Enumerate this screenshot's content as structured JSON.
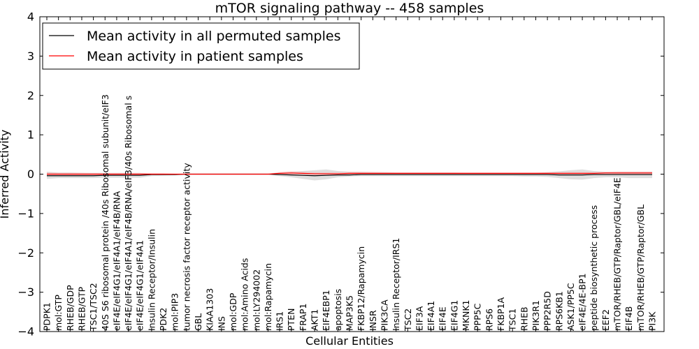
{
  "chart_data": {
    "type": "line",
    "title": "mTOR signaling pathway -- 458 samples",
    "xlabel": "Cellular Entities",
    "ylabel": "Inferred Activity",
    "ylim": [
      -4,
      4
    ],
    "yticks": [
      -4,
      -3,
      -2,
      -1,
      0,
      1,
      2,
      3,
      4
    ],
    "ytick_labels": [
      "−4",
      "−3",
      "−2",
      "−1",
      "0",
      "1",
      "2",
      "3",
      "4"
    ],
    "grid": false,
    "legend_position": "top-left",
    "categories": [
      "PDPK1",
      "mol:GTP",
      "RHEB/GDP",
      "RHEB/GTP",
      "TSC1/TSC2",
      "40S S6 ribosomal protein /40s Ribosomal subunit/eIF3",
      "eIF4E/eIF4G1/eIF4A1/eIF4B/RNA",
      "eIF4E/eIF4G1/eIF4A1/eIF4B/RNA/eIF3/40s Ribosomal s",
      "eIF4E/eIF4G1/eIF4A1",
      "Insulin Receptor/Insulin",
      "PDK2",
      "mol:PIP3",
      "tumor necrosis factor receptor activity",
      "GBL",
      "KIAA1303",
      "INS",
      "mol:GDP",
      "mol:Amino Acids",
      "mol:LY294002",
      "mol:Rapamycin",
      "IRS1",
      "PTEN",
      "FRAP1",
      "AKT1",
      "EIF4EBP1",
      "apoptosis",
      "MAP3K5",
      "FKBP12/Rapamycin",
      "INSR",
      "PIK3CA",
      "Insulin Receptor/IRS1",
      "TSC2",
      "EIF3A",
      "EIF4A1",
      "EIF4E",
      "EIF4G1",
      "MKNK1",
      "PPP5C",
      "RPS6",
      "FKBP1A",
      "TSC1",
      "RHEB",
      "PIK3R1",
      "PPP2R5D",
      "RPS6KB1",
      "ASK1/PP5C",
      "eIF4E/4E-BP1",
      "peptide biosynthetic process",
      "EEF2",
      "mTOR/RHEB/GTP/Raptor/GBL/eIF4E",
      "EIF4B",
      "mTOR/RHEB/GTP/Raptor/GBL",
      "PI3K"
    ],
    "series": [
      {
        "name": "Mean activity in all permuted samples",
        "color": "#000000",
        "values": [
          -0.04,
          -0.04,
          -0.04,
          -0.04,
          -0.04,
          -0.03,
          -0.03,
          -0.03,
          -0.03,
          -0.01,
          -0.01,
          -0.01,
          0,
          0,
          0,
          0,
          0,
          0,
          0,
          0,
          -0.01,
          -0.02,
          -0.03,
          -0.04,
          -0.03,
          -0.02,
          -0.02,
          -0.01,
          -0.01,
          -0.01,
          -0.01,
          -0.01,
          -0.01,
          -0.01,
          -0.01,
          -0.01,
          -0.01,
          -0.01,
          -0.01,
          -0.01,
          -0.01,
          -0.01,
          -0.01,
          -0.01,
          -0.02,
          -0.02,
          -0.02,
          -0.01,
          -0.01,
          -0.01,
          -0.01,
          -0.01,
          -0.01
        ],
        "band_upper": [
          0.06,
          0.04,
          0.04,
          0.03,
          0.03,
          0.03,
          0.03,
          0.03,
          0.03,
          0.02,
          0.02,
          0.01,
          0.005,
          0.005,
          0.005,
          0.005,
          0.005,
          0.005,
          0.005,
          0.01,
          0.04,
          0.06,
          0.08,
          0.1,
          0.12,
          0.08,
          0.06,
          0.06,
          0.05,
          0.05,
          0.04,
          0.04,
          0.04,
          0.04,
          0.04,
          0.04,
          0.03,
          0.03,
          0.03,
          0.03,
          0.03,
          0.03,
          0.03,
          0.05,
          0.07,
          0.1,
          0.12,
          0.08,
          0.06,
          0.06,
          0.06,
          0.06,
          0.06
        ],
        "band_lower": [
          -0.12,
          -0.1,
          -0.1,
          -0.1,
          -0.1,
          -0.09,
          -0.09,
          -0.09,
          -0.09,
          -0.05,
          -0.04,
          -0.03,
          -0.005,
          -0.005,
          -0.005,
          -0.005,
          -0.005,
          -0.005,
          -0.005,
          -0.01,
          -0.05,
          -0.08,
          -0.12,
          -0.16,
          -0.13,
          -0.08,
          -0.06,
          -0.05,
          -0.05,
          -0.05,
          -0.05,
          -0.05,
          -0.05,
          -0.05,
          -0.05,
          -0.05,
          -0.05,
          -0.05,
          -0.05,
          -0.05,
          -0.05,
          -0.06,
          -0.06,
          -0.07,
          -0.1,
          -0.13,
          -0.14,
          -0.1,
          -0.08,
          -0.08,
          -0.1,
          -0.1,
          -0.1
        ]
      },
      {
        "name": "Mean activity in patient samples",
        "color": "#ff0000",
        "values": [
          0,
          0,
          0,
          0,
          0,
          0,
          0,
          0,
          0,
          0,
          0,
          0,
          0,
          0,
          0,
          0,
          0,
          0,
          0,
          0,
          0.02,
          0.03,
          0.02,
          0.01,
          0.01,
          0.01,
          0.02,
          0.02,
          0.02,
          0.02,
          0.02,
          0.02,
          0.02,
          0.02,
          0.02,
          0.02,
          0.02,
          0.02,
          0.02,
          0.02,
          0.02,
          0.02,
          0.02,
          0.02,
          0.02,
          0.02,
          0.02,
          0.02,
          0.03,
          0.03,
          0.03,
          0.03,
          0.03
        ],
        "band_upper": [
          0.05,
          0.04,
          0.04,
          0.04,
          0.03,
          0.03,
          0.03,
          0.03,
          0.03,
          0.02,
          0.02,
          0.01,
          0.005,
          0.005,
          0.005,
          0.005,
          0.005,
          0.005,
          0.005,
          0.01,
          0.06,
          0.08,
          0.06,
          0.05,
          0.05,
          0.05,
          0.06,
          0.06,
          0.06,
          0.05,
          0.05,
          0.05,
          0.05,
          0.05,
          0.05,
          0.05,
          0.05,
          0.05,
          0.05,
          0.05,
          0.05,
          0.05,
          0.05,
          0.05,
          0.05,
          0.05,
          0.05,
          0.05,
          0.06,
          0.07,
          0.07,
          0.07,
          0.07
        ],
        "band_lower": [
          -0.04,
          -0.04,
          -0.04,
          -0.04,
          -0.03,
          -0.03,
          -0.03,
          -0.03,
          -0.03,
          -0.02,
          -0.02,
          -0.01,
          -0.005,
          -0.005,
          -0.005,
          -0.005,
          -0.005,
          -0.005,
          -0.005,
          -0.01,
          -0.02,
          -0.02,
          -0.02,
          -0.02,
          -0.02,
          -0.02,
          -0.02,
          -0.02,
          -0.02,
          -0.01,
          -0.01,
          -0.01,
          -0.01,
          -0.01,
          -0.01,
          -0.01,
          -0.01,
          -0.01,
          -0.01,
          -0.01,
          -0.01,
          -0.01,
          -0.01,
          -0.01,
          -0.01,
          -0.01,
          -0.01,
          -0.01,
          -0.01,
          -0.01,
          -0.01,
          -0.01,
          -0.01
        ]
      }
    ]
  }
}
